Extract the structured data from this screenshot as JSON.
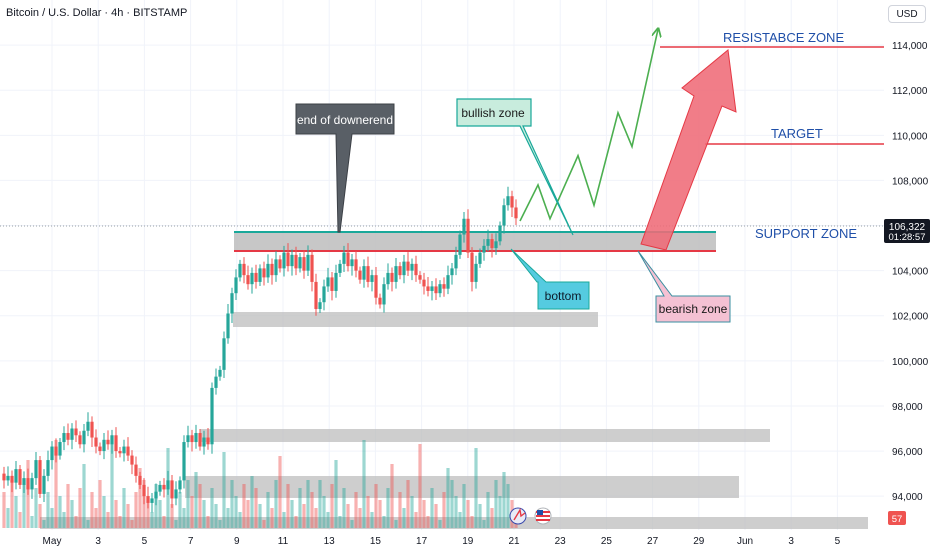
{
  "header": {
    "symbol_title": "Bitcoin / U.S. Dollar · 4h · BITSTAMP",
    "currency_button": "USD"
  },
  "price_tag": {
    "value": "106,322",
    "countdown": "01:28:57"
  },
  "volume_badge": "57",
  "annotations": {
    "resistance_zone": "RESISTABCE ZONE",
    "target": "TARGET",
    "support_zone": "SUPPORT ZONE",
    "end_of_downtrend": "end of downerend",
    "bullish_zone": "bullish zone",
    "bottom": "bottom",
    "bearish_zone": "bearish zone"
  },
  "colors": {
    "up": "#26a69a",
    "down": "#ef5350",
    "resistance_line": "#e53945",
    "support_line": "#19a89a",
    "zone_fill": "#bdbdbd",
    "label_blue": "#1f4fa8",
    "end_callout": "#595f66",
    "bullish_callout": "#c8ecdd",
    "bottom_callout": "#55cbe0",
    "bearish_callout": "#f4c1d3",
    "projection_green": "#4caf50",
    "arrow_red": "#ef6b78"
  },
  "chart_data": {
    "type": "candlestick",
    "title": "Bitcoin / U.S. Dollar · 4h · BITSTAMP",
    "y_axis": {
      "ticks": [
        "114,000",
        "112,000",
        "110,000",
        "108,000",
        "106,000",
        "104,000",
        "102,000",
        "100,000",
        "98,000",
        "96,000",
        "94,000"
      ],
      "ylim": [
        92500,
        116000
      ]
    },
    "x_axis": {
      "ticks": [
        "May",
        "3",
        "5",
        "7",
        "9",
        "11",
        "13",
        "15",
        "17",
        "19",
        "21",
        "23",
        "25",
        "27",
        "29",
        "Jun",
        "3",
        "5"
      ]
    },
    "last_price": 106322,
    "levels": {
      "resistance": 114600,
      "target": 110100,
      "support_top": 106000,
      "support_bottom": 105100,
      "consolidation_low_top": 102200,
      "consolidation_low_bottom": 101800,
      "volume_band_top": 96700,
      "volume_band_bottom": 96050,
      "volume_band2_top": 94600,
      "volume_band2_bottom": 93500
    },
    "price_path": [
      [
        0,
        95000
      ],
      [
        4,
        94700
      ],
      [
        8,
        94900
      ],
      [
        12,
        94600
      ],
      [
        16,
        95200
      ],
      [
        20,
        94500
      ],
      [
        24,
        94800
      ],
      [
        28,
        94300
      ],
      [
        32,
        94800
      ],
      [
        36,
        95600
      ],
      [
        40,
        94100
      ],
      [
        44,
        94900
      ],
      [
        48,
        95600
      ],
      [
        52,
        96200
      ],
      [
        56,
        95800
      ],
      [
        60,
        96400
      ],
      [
        64,
        96800
      ],
      [
        68,
        96500
      ],
      [
        72,
        97000
      ],
      [
        76,
        96700
      ],
      [
        80,
        96300
      ],
      [
        84,
        96900
      ],
      [
        88,
        97300
      ],
      [
        92,
        96600
      ],
      [
        96,
        96200
      ],
      [
        100,
        96000
      ],
      [
        104,
        96500
      ],
      [
        108,
        96300
      ],
      [
        112,
        96700
      ],
      [
        116,
        96000
      ],
      [
        120,
        95900
      ],
      [
        124,
        96200
      ],
      [
        128,
        95800
      ],
      [
        132,
        95400
      ],
      [
        136,
        94900
      ],
      [
        140,
        94500
      ],
      [
        144,
        94000
      ],
      [
        148,
        93700
      ],
      [
        152,
        93900
      ],
      [
        156,
        94200
      ],
      [
        160,
        94500
      ],
      [
        164,
        94300
      ],
      [
        168,
        94700
      ],
      [
        172,
        93900
      ],
      [
        176,
        94300
      ],
      [
        180,
        94700
      ],
      [
        184,
        96400
      ],
      [
        188,
        96700
      ],
      [
        192,
        96400
      ],
      [
        196,
        96800
      ],
      [
        200,
        96200
      ],
      [
        204,
        96600
      ],
      [
        208,
        96300
      ],
      [
        212,
        98800
      ],
      [
        216,
        99300
      ],
      [
        220,
        99600
      ],
      [
        224,
        101000
      ],
      [
        228,
        102100
      ],
      [
        232,
        103000
      ],
      [
        236,
        103700
      ],
      [
        240,
        104300
      ],
      [
        244,
        103800
      ],
      [
        248,
        103400
      ],
      [
        252,
        103900
      ],
      [
        256,
        103500
      ],
      [
        260,
        104100
      ],
      [
        264,
        103700
      ],
      [
        268,
        104300
      ],
      [
        272,
        103800
      ],
      [
        276,
        104500
      ],
      [
        280,
        104100
      ],
      [
        284,
        104800
      ],
      [
        288,
        104200
      ],
      [
        292,
        104700
      ],
      [
        296,
        104100
      ],
      [
        300,
        104600
      ],
      [
        304,
        104000
      ],
      [
        308,
        104700
      ],
      [
        312,
        103500
      ],
      [
        316,
        102300
      ],
      [
        320,
        102600
      ],
      [
        324,
        103300
      ],
      [
        328,
        103700
      ],
      [
        332,
        103100
      ],
      [
        336,
        103900
      ],
      [
        340,
        104300
      ],
      [
        344,
        104800
      ],
      [
        348,
        104200
      ],
      [
        352,
        104500
      ],
      [
        356,
        104000
      ],
      [
        360,
        103600
      ],
      [
        364,
        104200
      ],
      [
        368,
        103500
      ],
      [
        372,
        103800
      ],
      [
        376,
        102800
      ],
      [
        380,
        102500
      ],
      [
        384,
        103400
      ],
      [
        388,
        103900
      ],
      [
        392,
        103500
      ],
      [
        396,
        104200
      ],
      [
        400,
        103800
      ],
      [
        404,
        104400
      ],
      [
        408,
        104000
      ],
      [
        412,
        104300
      ],
      [
        416,
        103800
      ],
      [
        420,
        103600
      ],
      [
        424,
        103300
      ],
      [
        428,
        103100
      ],
      [
        432,
        103300
      ],
      [
        436,
        103000
      ],
      [
        440,
        103400
      ],
      [
        444,
        103200
      ],
      [
        448,
        103800
      ],
      [
        452,
        104100
      ],
      [
        456,
        104700
      ],
      [
        460,
        105600
      ],
      [
        464,
        106300
      ],
      [
        468,
        104800
      ],
      [
        472,
        103500
      ],
      [
        476,
        104300
      ],
      [
        480,
        104800
      ],
      [
        484,
        105100
      ],
      [
        488,
        105400
      ],
      [
        492,
        105000
      ],
      [
        496,
        105300
      ],
      [
        500,
        106000
      ],
      [
        504,
        106900
      ],
      [
        508,
        107300
      ],
      [
        512,
        106800
      ],
      [
        516,
        106322
      ]
    ],
    "projection_path": [
      [
        520,
        106200
      ],
      [
        538,
        107800
      ],
      [
        550,
        106300
      ],
      [
        578,
        109100
      ],
      [
        594,
        106900
      ],
      [
        618,
        111000
      ],
      [
        632,
        109500
      ],
      [
        658,
        114700
      ]
    ],
    "arrow_path": [
      [
        646,
        105300
      ],
      [
        726,
        114600
      ]
    ]
  }
}
